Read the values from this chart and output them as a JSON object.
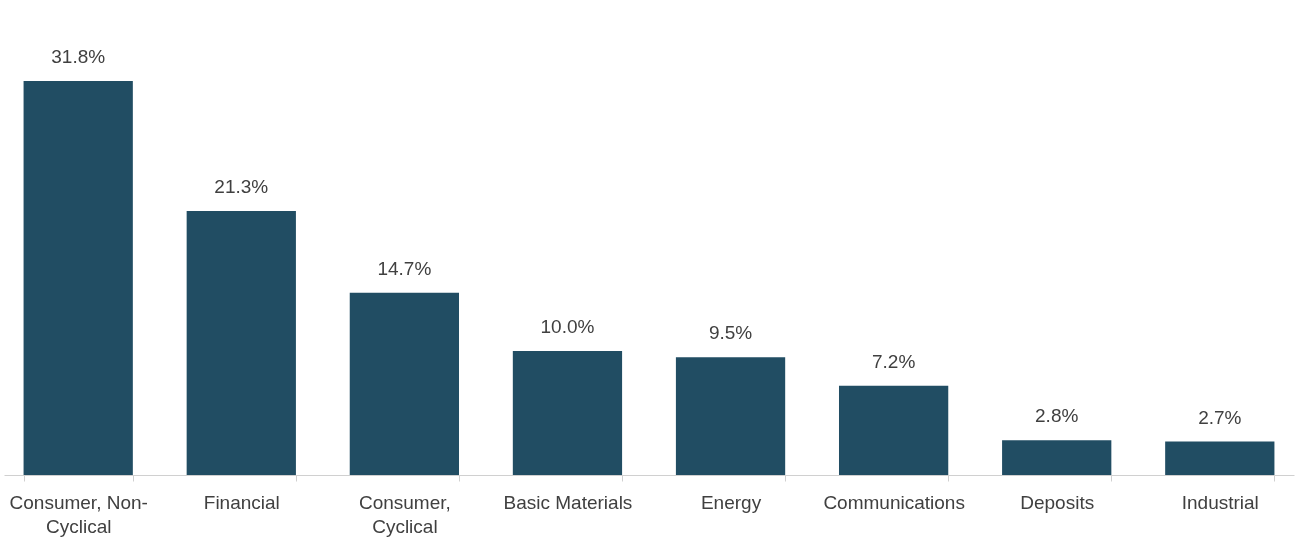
{
  "chart_data": {
    "type": "bar",
    "categories": [
      "Consumer, Non-Cyclical",
      "Financial",
      "Consumer, Cyclical",
      "Basic Materials",
      "Energy",
      "Communications",
      "Deposits",
      "Industrial"
    ],
    "values": [
      31.8,
      21.3,
      14.7,
      10.0,
      9.5,
      7.2,
      2.8,
      2.7
    ],
    "value_labels": [
      "31.8%",
      "21.3%",
      "14.7%",
      "10.0%",
      "9.5%",
      "7.2%",
      "2.8%",
      "2.7%"
    ],
    "color": "#214d63"
  }
}
